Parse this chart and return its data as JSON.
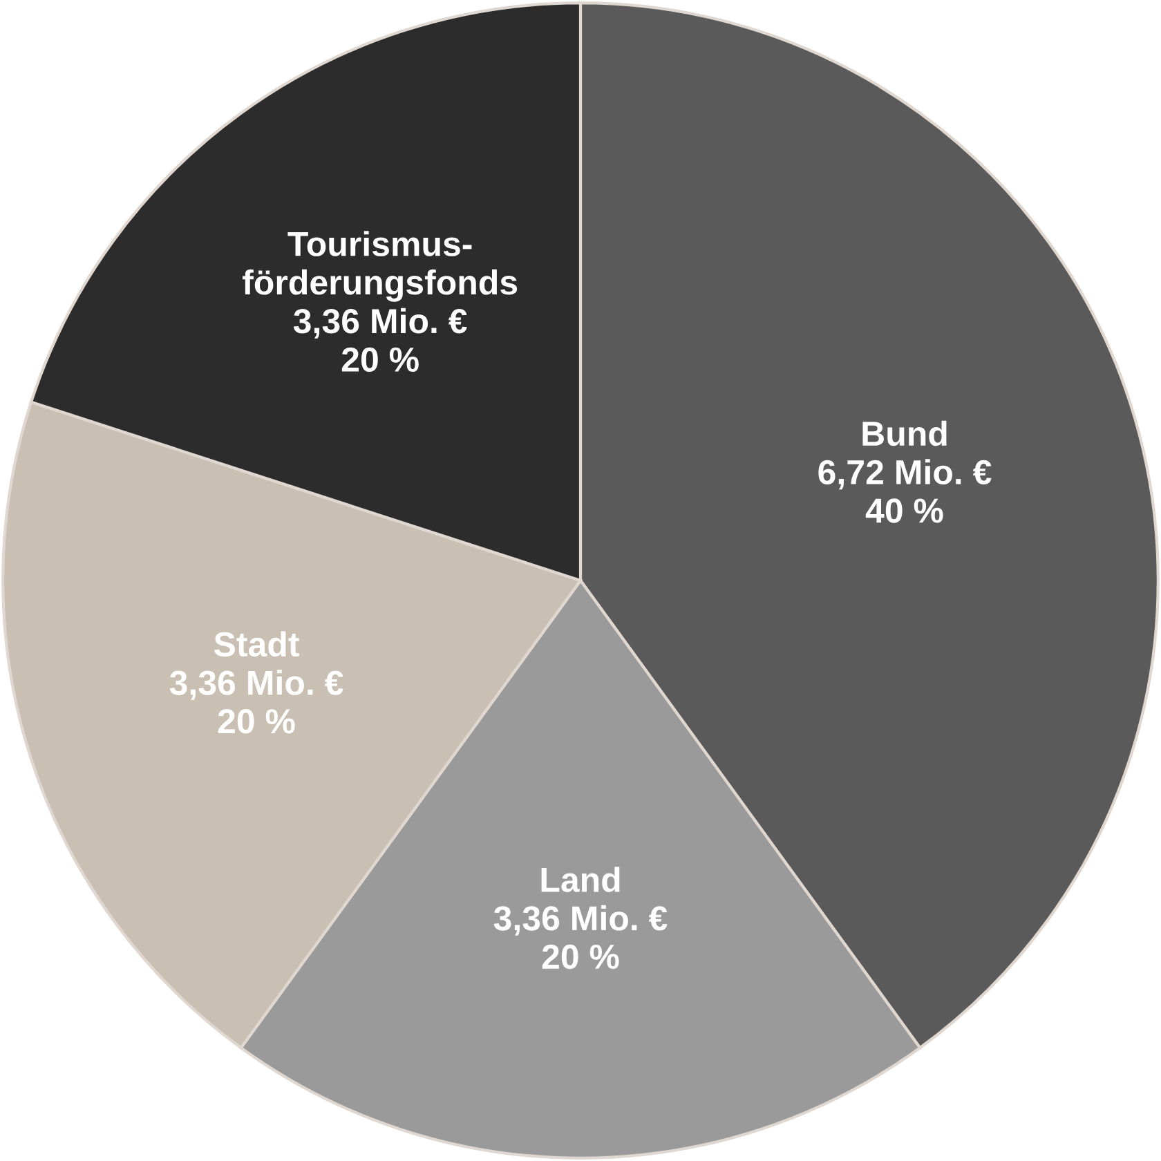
{
  "chart_data": {
    "type": "pie",
    "categories": [
      "Bund",
      "Land",
      "Stadt",
      "Tourismus-\nförderungsfonds"
    ],
    "values": [
      6.72,
      3.36,
      3.36,
      3.36
    ],
    "value_labels": [
      "6,72 Mio. €\n40 %",
      "3,36 Mio. €\n20 %",
      "3,36 Mio. €\n20 %",
      "3,36 Mio. €\n20 %"
    ],
    "colors": [
      "#5a5a5a",
      "#9a9a9a",
      "#c9bfb3",
      "#2c2c2c"
    ]
  }
}
